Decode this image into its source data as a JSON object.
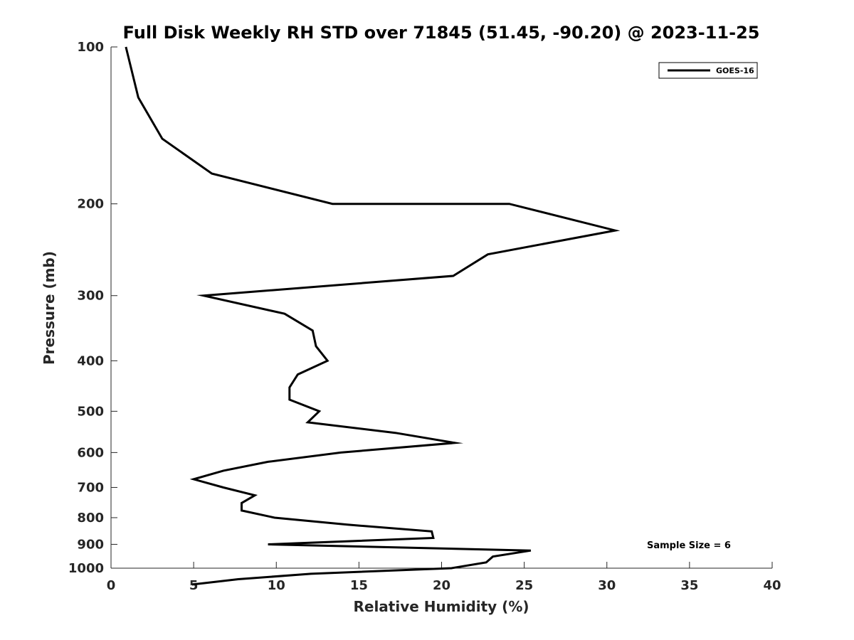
{
  "chart_data": {
    "type": "line",
    "title": "Full Disk Weekly RH STD over 71845 (51.45, -90.20) @ 2023-11-25",
    "xlabel": "Relative Humidity (%)",
    "ylabel": "Pressure (mb)",
    "xlim": [
      0,
      40
    ],
    "ylim": [
      100,
      1000
    ],
    "yscale": "log",
    "yreversed": true,
    "xticks": [
      0,
      5,
      10,
      15,
      20,
      25,
      30,
      35,
      40
    ],
    "yticks": [
      100,
      200,
      300,
      400,
      500,
      600,
      700,
      800,
      900,
      1000
    ],
    "grid": false,
    "legend_position": "top-right",
    "annotation": "Sample Size = 6",
    "series": [
      {
        "name": "GOES-16",
        "color": "#000000",
        "points": [
          [
            0.9,
            100
          ],
          [
            1.65,
            125
          ],
          [
            3.1,
            150
          ],
          [
            6.1,
            175
          ],
          [
            13.4,
            200
          ],
          [
            24.1,
            200
          ],
          [
            30.5,
            225
          ],
          [
            22.8,
            250
          ],
          [
            20.7,
            275
          ],
          [
            5.6,
            300
          ],
          [
            10.5,
            325
          ],
          [
            12.2,
            350
          ],
          [
            12.4,
            375
          ],
          [
            13.1,
            400
          ],
          [
            11.3,
            425
          ],
          [
            10.8,
            450
          ],
          [
            10.8,
            475
          ],
          [
            12.6,
            500
          ],
          [
            11.9,
            525
          ],
          [
            17.2,
            550
          ],
          [
            20.8,
            575
          ],
          [
            13.9,
            600
          ],
          [
            9.5,
            625
          ],
          [
            6.8,
            650
          ],
          [
            5.0,
            675
          ],
          [
            6.8,
            700
          ],
          [
            8.7,
            725
          ],
          [
            7.9,
            750
          ],
          [
            7.9,
            775
          ],
          [
            9.9,
            800
          ],
          [
            14.3,
            825
          ],
          [
            19.4,
            850
          ],
          [
            19.5,
            875
          ],
          [
            9.5,
            900
          ],
          [
            25.4,
            925
          ],
          [
            23.1,
            950
          ],
          [
            22.7,
            975
          ],
          [
            20.6,
            1000
          ],
          [
            12.1,
            1025
          ],
          [
            7.7,
            1050
          ],
          [
            4.9,
            1075
          ]
        ]
      }
    ]
  }
}
